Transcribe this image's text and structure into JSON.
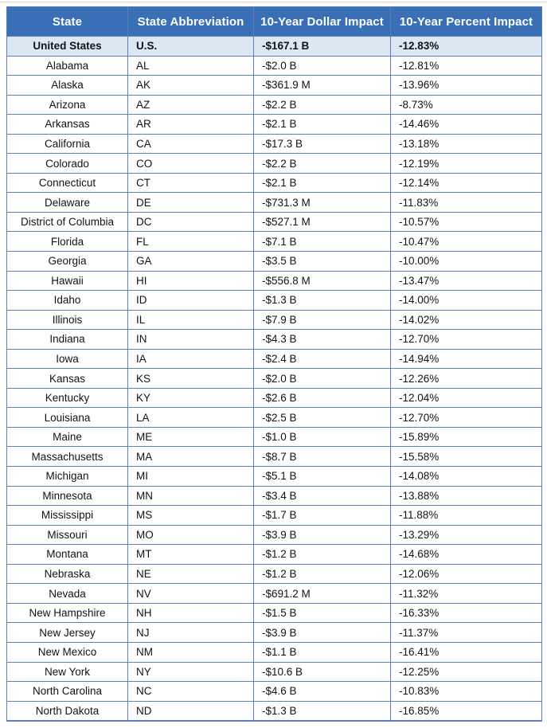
{
  "table": {
    "columns": [
      "State",
      "State Abbreviation",
      "10-Year Dollar Impact",
      "10-Year Percent Impact"
    ],
    "rows": [
      {
        "state": "United States",
        "abbr": "U.S.",
        "dollar": "-$167.1 B",
        "percent": "-12.83%",
        "highlighted": true
      },
      {
        "state": "Alabama",
        "abbr": "AL",
        "dollar": "-$2.0 B",
        "percent": "-12.81%"
      },
      {
        "state": "Alaska",
        "abbr": "AK",
        "dollar": "-$361.9 M",
        "percent": "-13.96%"
      },
      {
        "state": "Arizona",
        "abbr": "AZ",
        "dollar": "-$2.2 B",
        "percent": "-8.73%"
      },
      {
        "state": "Arkansas",
        "abbr": "AR",
        "dollar": "-$2.1 B",
        "percent": "-14.46%"
      },
      {
        "state": "California",
        "abbr": "CA",
        "dollar": "-$17.3 B",
        "percent": "-13.18%"
      },
      {
        "state": "Colorado",
        "abbr": "CO",
        "dollar": "-$2.2 B",
        "percent": "-12.19%"
      },
      {
        "state": "Connecticut",
        "abbr": "CT",
        "dollar": "-$2.1 B",
        "percent": "-12.14%"
      },
      {
        "state": "Delaware",
        "abbr": "DE",
        "dollar": "-$731.3 M",
        "percent": "-11.83%"
      },
      {
        "state": "District of Columbia",
        "abbr": "DC",
        "dollar": "-$527.1 M",
        "percent": "-10.57%"
      },
      {
        "state": "Florida",
        "abbr": "FL",
        "dollar": "-$7.1 B",
        "percent": "-10.47%"
      },
      {
        "state": "Georgia",
        "abbr": "GA",
        "dollar": "-$3.5 B",
        "percent": "-10.00%"
      },
      {
        "state": "Hawaii",
        "abbr": "HI",
        "dollar": "-$556.8 M",
        "percent": "-13.47%"
      },
      {
        "state": "Idaho",
        "abbr": "ID",
        "dollar": "-$1.3 B",
        "percent": "-14.00%"
      },
      {
        "state": "Illinois",
        "abbr": "IL",
        "dollar": "-$7.9 B",
        "percent": "-14.02%"
      },
      {
        "state": "Indiana",
        "abbr": "IN",
        "dollar": "-$4.3 B",
        "percent": "-12.70%"
      },
      {
        "state": "Iowa",
        "abbr": "IA",
        "dollar": "-$2.4 B",
        "percent": "-14.94%"
      },
      {
        "state": "Kansas",
        "abbr": "KS",
        "dollar": "-$2.0 B",
        "percent": "-12.26%"
      },
      {
        "state": "Kentucky",
        "abbr": "KY",
        "dollar": "-$2.6 B",
        "percent": "-12.04%"
      },
      {
        "state": "Louisiana",
        "abbr": "LA",
        "dollar": "-$2.5 B",
        "percent": "-12.70%"
      },
      {
        "state": "Maine",
        "abbr": "ME",
        "dollar": "-$1.0 B",
        "percent": "-15.89%"
      },
      {
        "state": "Massachusetts",
        "abbr": "MA",
        "dollar": "-$8.7 B",
        "percent": "-15.58%"
      },
      {
        "state": "Michigan",
        "abbr": "MI",
        "dollar": "-$5.1 B",
        "percent": "-14.08%"
      },
      {
        "state": "Minnesota",
        "abbr": "MN",
        "dollar": "-$3.4 B",
        "percent": "-13.88%"
      },
      {
        "state": "Mississippi",
        "abbr": "MS",
        "dollar": "-$1.7 B",
        "percent": "-11.88%"
      },
      {
        "state": "Missouri",
        "abbr": "MO",
        "dollar": "-$3.9 B",
        "percent": "-13.29%"
      },
      {
        "state": "Montana",
        "abbr": "MT",
        "dollar": "-$1.2 B",
        "percent": "-14.68%"
      },
      {
        "state": "Nebraska",
        "abbr": "NE",
        "dollar": "-$1.2 B",
        "percent": "-12.06%"
      },
      {
        "state": "Nevada",
        "abbr": "NV",
        "dollar": "-$691.2 M",
        "percent": "-11.32%"
      },
      {
        "state": "New Hampshire",
        "abbr": "NH",
        "dollar": "-$1.5 B",
        "percent": "-16.33%"
      },
      {
        "state": "New Jersey",
        "abbr": "NJ",
        "dollar": "-$3.9 B",
        "percent": "-11.37%"
      },
      {
        "state": "New Mexico",
        "abbr": "NM",
        "dollar": "-$1.1 B",
        "percent": "-16.41%"
      },
      {
        "state": "New York",
        "abbr": "NY",
        "dollar": "-$10.6 B",
        "percent": "-12.25%"
      },
      {
        "state": "North Carolina",
        "abbr": "NC",
        "dollar": "-$4.6 B",
        "percent": "-10.83%"
      },
      {
        "state": "North Dakota",
        "abbr": "ND",
        "dollar": "-$1.3 B",
        "percent": "-16.85%"
      }
    ]
  },
  "colors": {
    "header_bg": "#3a6eb5",
    "header_text": "#ffffff",
    "highlight_row_bg": "#dce8f4",
    "border": "#5b7fbe",
    "body_text": "#131313",
    "top_divider": "#d9d9d9"
  }
}
